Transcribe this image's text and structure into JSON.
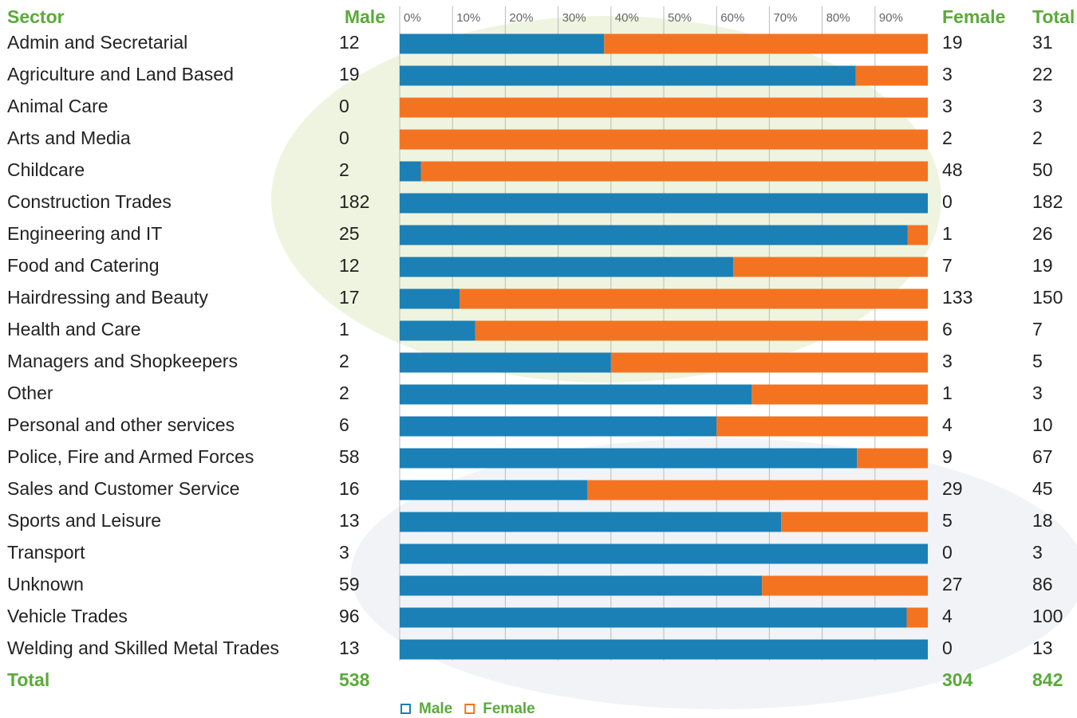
{
  "chart_data": {
    "type": "stacked_bar_100",
    "headers": {
      "sector": "Sector",
      "total": "Total"
    },
    "categories": [
      "Admin and Secretarial",
      "Agriculture and Land Based",
      "Animal Care",
      "Arts and Media",
      "Childcare",
      "Construction Trades",
      "Engineering and IT",
      "Food and Catering",
      "Hairdressing and Beauty",
      "Health and Care",
      "Managers and Shopkeepers",
      "Other",
      "Personal and other services",
      "Police, Fire and Armed Forces",
      "Sales and Customer Service",
      "Sports and Leisure",
      "Transport",
      "Unknown",
      "Vehicle Trades",
      "Welding and Skilled Metal Trades"
    ],
    "series": [
      {
        "name": "Male",
        "color": "#1b80b5",
        "values": [
          12,
          19,
          0,
          0,
          2,
          182,
          25,
          12,
          17,
          1,
          2,
          2,
          6,
          58,
          16,
          13,
          3,
          59,
          96,
          13
        ]
      },
      {
        "name": "Female",
        "color": "#f47321",
        "values": [
          19,
          3,
          3,
          2,
          48,
          0,
          1,
          7,
          133,
          6,
          3,
          1,
          4,
          9,
          29,
          5,
          0,
          27,
          4,
          0
        ]
      }
    ],
    "totals": [
      31,
      22,
      3,
      2,
      50,
      182,
      26,
      19,
      150,
      7,
      5,
      3,
      10,
      67,
      45,
      18,
      3,
      86,
      100,
      13
    ],
    "total_row": {
      "label": "Total",
      "male": 538,
      "female": 304,
      "total": 842
    },
    "xlim": [
      0,
      100
    ],
    "xticks": [
      {
        "value": 0,
        "label": "0%"
      },
      {
        "value": 10,
        "label": "10%"
      },
      {
        "value": 20,
        "label": "20%"
      },
      {
        "value": 30,
        "label": "30%"
      },
      {
        "value": 40,
        "label": "40%"
      },
      {
        "value": 50,
        "label": "50%"
      },
      {
        "value": 60,
        "label": "60%"
      },
      {
        "value": 70,
        "label": "70%"
      },
      {
        "value": 80,
        "label": "80%"
      },
      {
        "value": 90,
        "label": "90%"
      }
    ],
    "grid": true,
    "header_color": "#5aaa3a"
  }
}
